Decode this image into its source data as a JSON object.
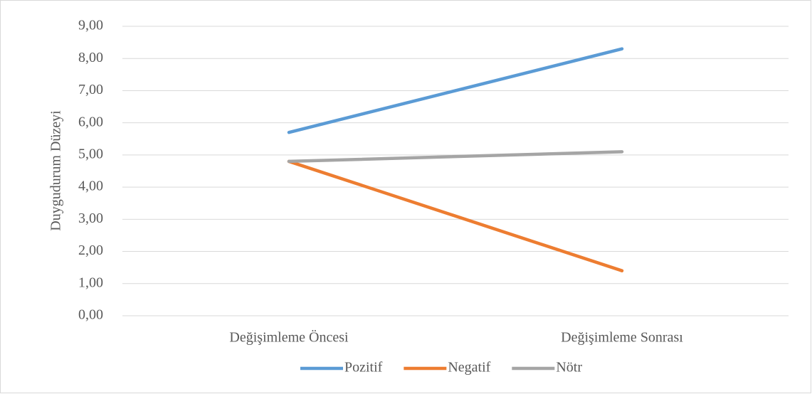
{
  "chart_data": {
    "type": "line",
    "y_label": "Duygudurum Düzeyi",
    "categories": [
      "Değişimleme Öncesi",
      "Değişimleme Sonrası"
    ],
    "series": [
      {
        "name": "Pozitif",
        "color": "#5b9bd5",
        "values": [
          5.7,
          8.3
        ]
      },
      {
        "name": "Negatif",
        "color": "#ed7d31",
        "values": [
          4.8,
          1.4
        ]
      },
      {
        "name": "Nötr",
        "color": "#a5a5a5",
        "values": [
          4.8,
          5.1
        ]
      }
    ],
    "ylim": [
      0,
      9
    ],
    "yticks": [
      {
        "value": 0,
        "label": "0,00"
      },
      {
        "value": 1,
        "label": "1,00"
      },
      {
        "value": 2,
        "label": "2,00"
      },
      {
        "value": 3,
        "label": "3,00"
      },
      {
        "value": 4,
        "label": "4,00"
      },
      {
        "value": 5,
        "label": "5,00"
      },
      {
        "value": 6,
        "label": "6,00"
      },
      {
        "value": 7,
        "label": "7,00"
      },
      {
        "value": 8,
        "label": "8,00"
      },
      {
        "value": 9,
        "label": "9,00"
      }
    ],
    "grid": true,
    "legend": "bottom"
  }
}
